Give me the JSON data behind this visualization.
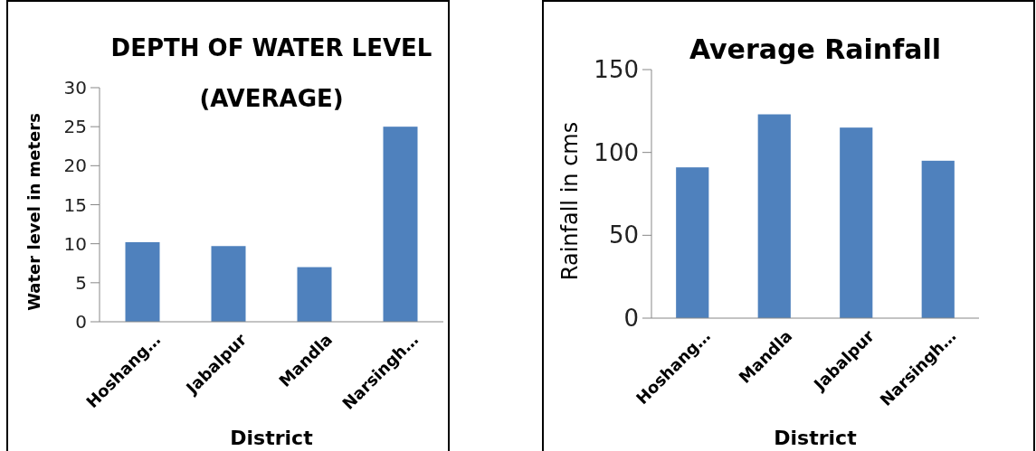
{
  "chart_data": [
    {
      "type": "bar",
      "title": "DEPTH OF WATER LEVEL (AVERAGE)",
      "xlabel": "District",
      "ylabel": "Water level in meters",
      "categories": [
        "Hoshang…",
        "Jabalpur",
        "Mandla",
        "Narsingh…"
      ],
      "values": [
        10.2,
        9.7,
        7.0,
        25.0
      ],
      "color": "#4f81bd",
      "ylim": [
        0,
        30
      ],
      "yticks": [
        0,
        5,
        10,
        15,
        20,
        25,
        30
      ],
      "grid": false
    },
    {
      "type": "bar",
      "title": "Average Rainfall",
      "xlabel": "District",
      "ylabel": "Rainfall in cms",
      "categories": [
        "Hoshang…",
        "Mandla",
        "Jabalpur",
        "Narsingh…"
      ],
      "values": [
        91,
        123,
        115,
        95
      ],
      "color": "#4f81bd",
      "ylim": [
        0,
        150
      ],
      "yticks": [
        0,
        50,
        100,
        150
      ],
      "grid": false
    }
  ]
}
